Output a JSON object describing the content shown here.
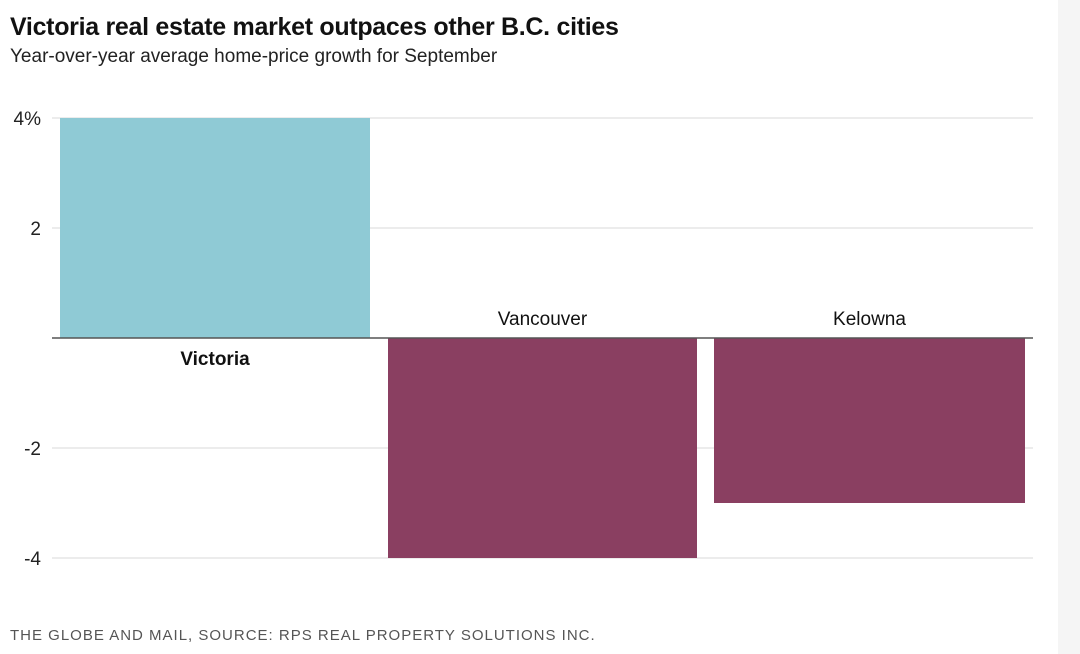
{
  "chart_data": {
    "type": "bar",
    "title": "Victoria real estate market outpaces other B.C. cities",
    "subtitle": "Year-over-year average home-price growth for September",
    "categories": [
      "Victoria",
      "Vancouver",
      "Kelowna"
    ],
    "values": [
      4.0,
      -4.0,
      -3.0
    ],
    "highlight_category": "Victoria",
    "ylim": [
      -4,
      4
    ],
    "yticks": [
      4,
      2,
      -2,
      -4
    ],
    "ytick_labels": [
      "4%",
      "2",
      "-2",
      "-4"
    ],
    "xlabel": "",
    "ylabel": "",
    "grid": true,
    "colors": {
      "positive": "#8fcad5",
      "negative": "#8a3f61",
      "gridline": "#d9d9d9",
      "baseline": "#555555"
    },
    "source": "THE GLOBE AND MAIL, SOURCE: RPS REAL PROPERTY SOLUTIONS INC."
  }
}
